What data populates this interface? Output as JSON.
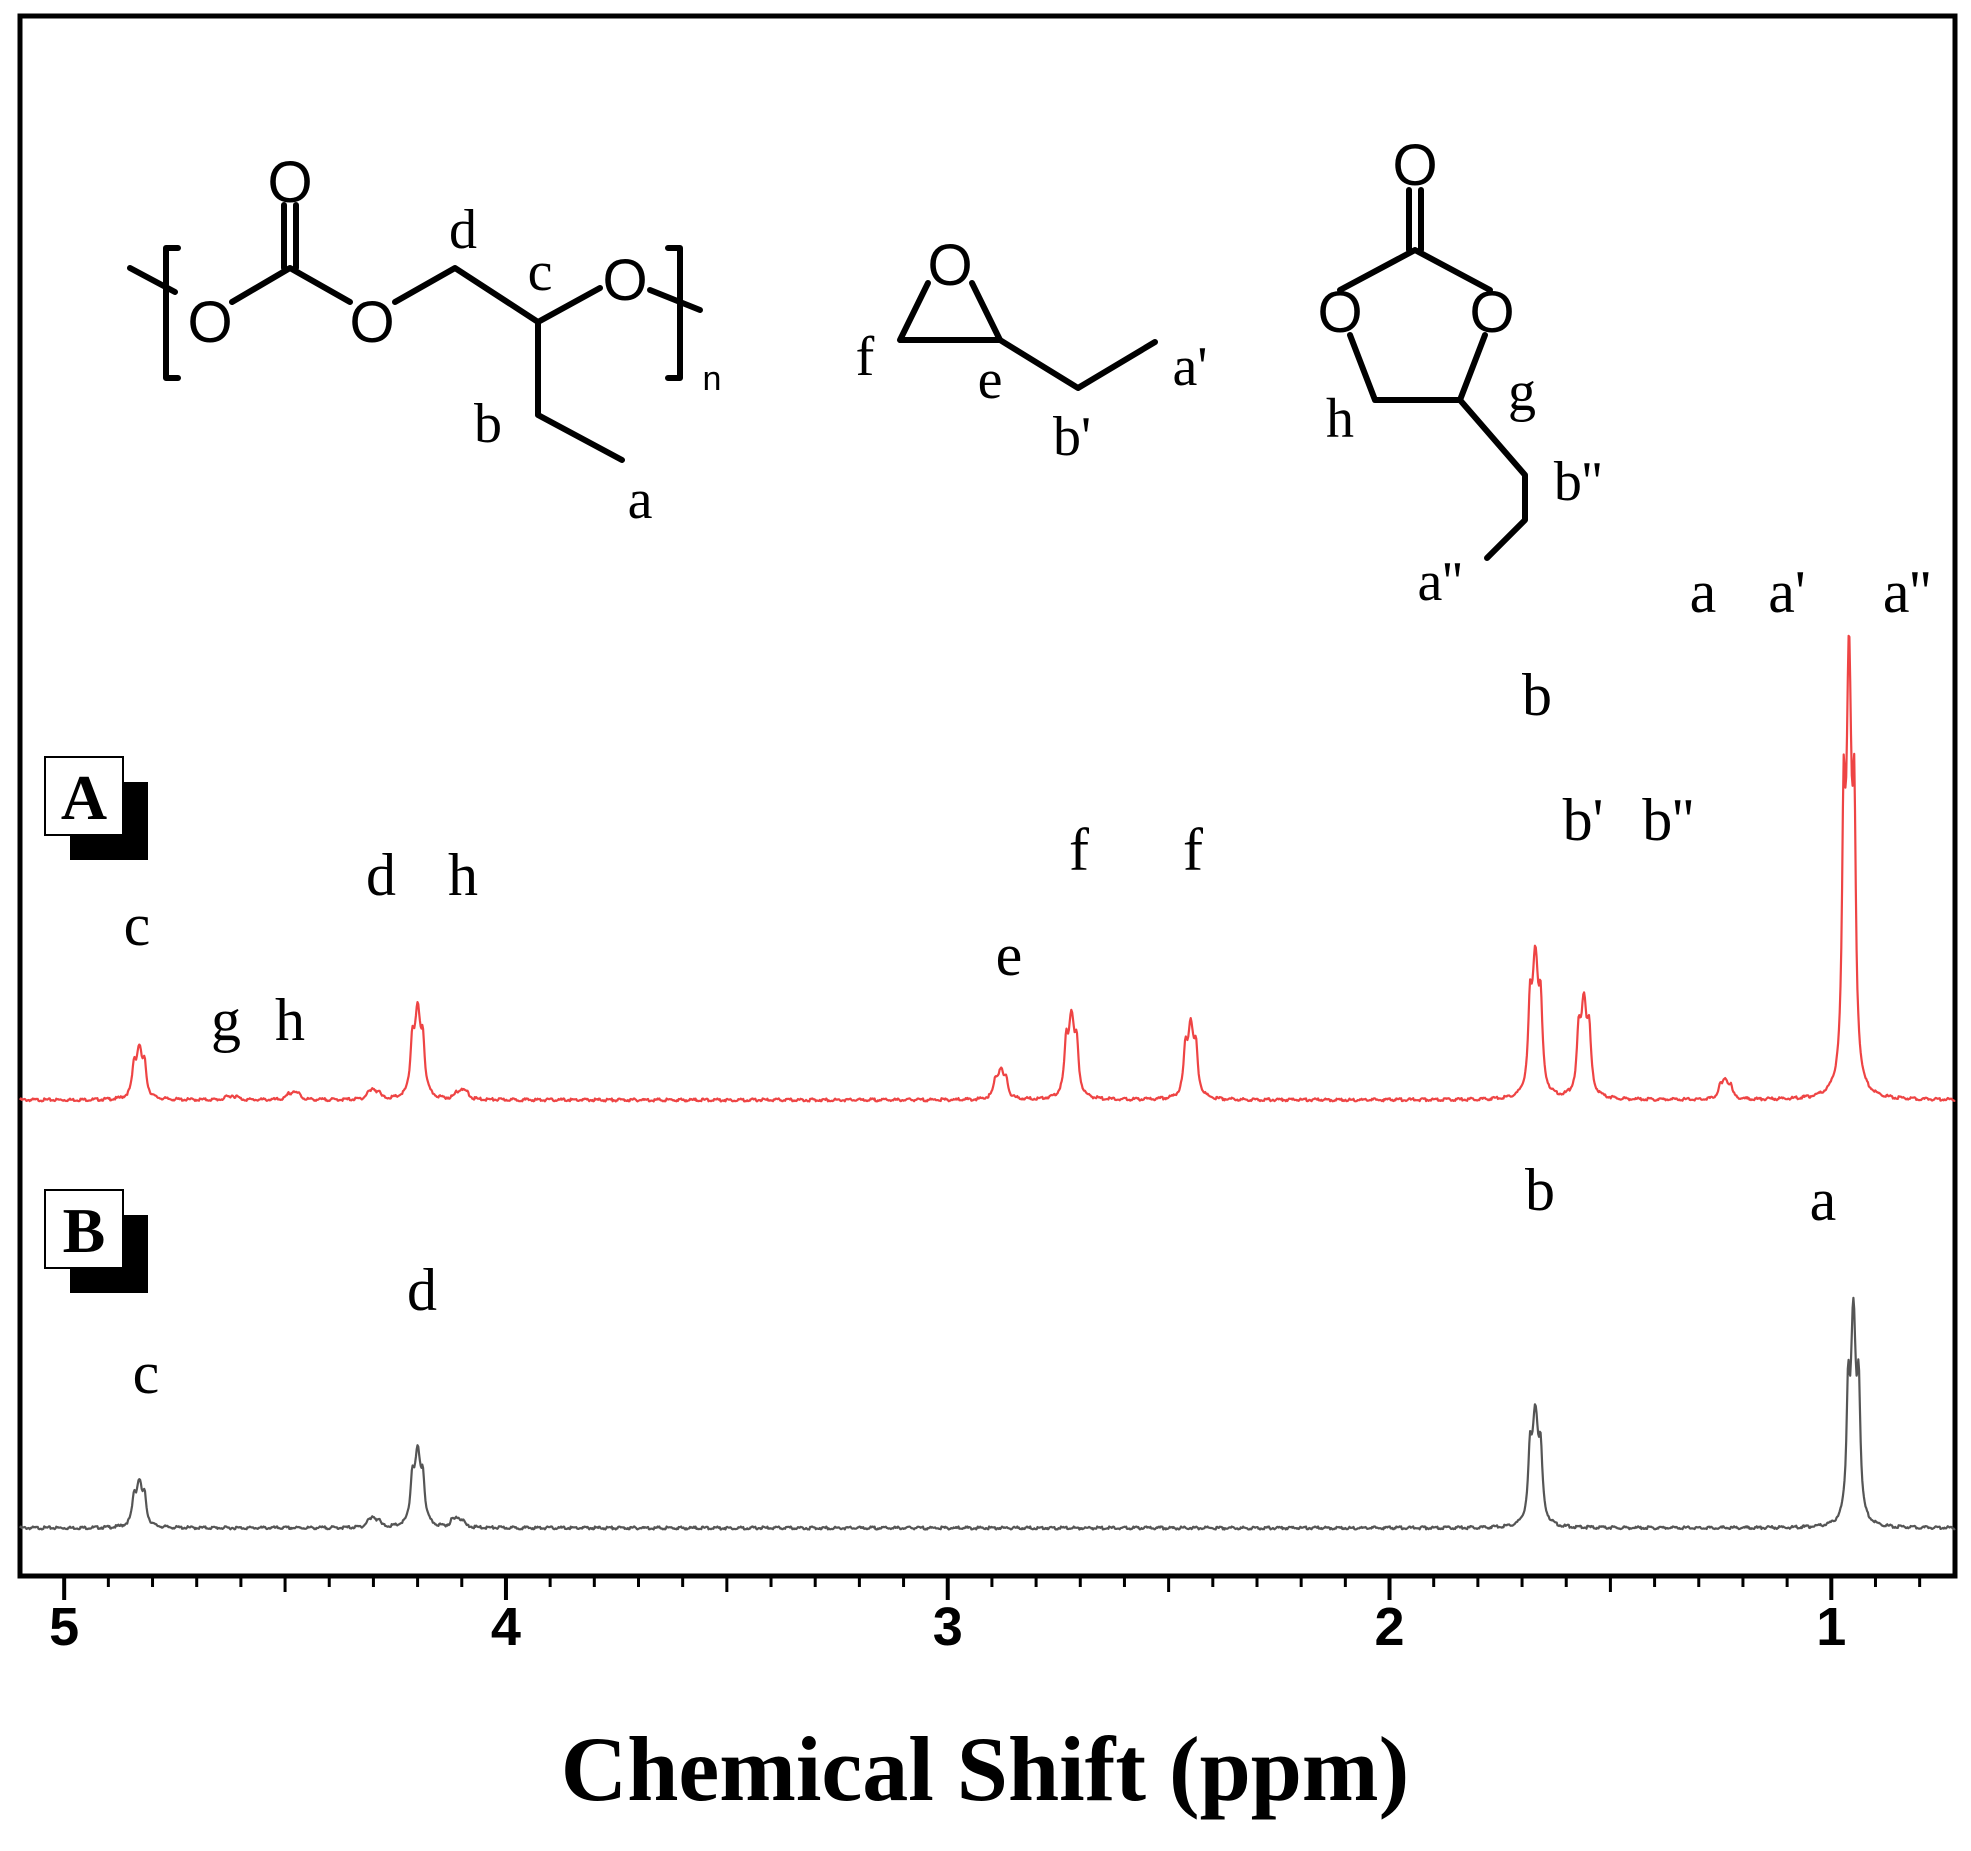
{
  "chart_data": {
    "type": "line",
    "xlabel": "Chemical Shift (ppm)",
    "ylabel": "",
    "xlim": [
      5.1,
      0.72
    ],
    "x_reversed": true,
    "x_ticks": [
      "5",
      "4",
      "3",
      "2",
      "1"
    ],
    "grid": false,
    "series": [
      {
        "name": "A",
        "color": "#ee4444",
        "peaks": [
          {
            "shift": 4.83,
            "label": "c",
            "height": 0.26
          },
          {
            "shift": 4.62,
            "label": "g",
            "height": 0.02
          },
          {
            "shift": 4.48,
            "label": "h",
            "height": 0.04
          },
          {
            "shift": 4.3,
            "label": "",
            "height": 0.05
          },
          {
            "shift": 4.2,
            "label": "d",
            "height": 0.45
          },
          {
            "shift": 4.1,
            "label": "h",
            "height": 0.05
          },
          {
            "shift": 2.88,
            "label": "e",
            "height": 0.15
          },
          {
            "shift": 2.72,
            "label": "f",
            "height": 0.42
          },
          {
            "shift": 2.45,
            "label": "f",
            "height": 0.38
          },
          {
            "shift": 1.67,
            "label": "b",
            "height": 0.72
          },
          {
            "shift": 1.56,
            "label": "b'",
            "height": 0.5
          },
          {
            "shift": 1.24,
            "label": "",
            "height": 0.1
          },
          {
            "shift": 0.96,
            "label": "a a' a''",
            "height": 2.25
          }
        ]
      },
      {
        "name": "B",
        "color": "#555555",
        "peaks": [
          {
            "shift": 4.83,
            "label": "c",
            "height": 0.23
          },
          {
            "shift": 4.3,
            "label": "",
            "height": 0.05
          },
          {
            "shift": 4.2,
            "label": "d",
            "height": 0.38
          },
          {
            "shift": 4.11,
            "label": "",
            "height": 0.05
          },
          {
            "shift": 1.67,
            "label": "b",
            "height": 0.58
          },
          {
            "shift": 0.95,
            "label": "a",
            "height": 1.1
          }
        ]
      }
    ],
    "panel_labels": [
      "A",
      "B"
    ],
    "peak_labels_A": [
      "c",
      "g",
      "h",
      "d",
      "h",
      "e",
      "f",
      "f",
      "b",
      "b'",
      "b''",
      "a",
      "a'",
      "a''"
    ],
    "peak_labels_B": [
      "c",
      "d",
      "b",
      "a"
    ]
  },
  "structures": {
    "polymer": {
      "atoms": [
        "O",
        "O",
        "O",
        "O"
      ],
      "labels": [
        "d",
        "c",
        "b",
        "a"
      ],
      "subscript": "n"
    },
    "epoxide": {
      "atoms": [
        "O"
      ],
      "labels": [
        "f",
        "e",
        "a'",
        "b'"
      ]
    },
    "carbonate": {
      "atoms": [
        "O",
        "O",
        "O"
      ],
      "labels": [
        "h",
        "g",
        "b''",
        "a''"
      ]
    }
  },
  "colors": {
    "spectrum_A": "#ee4444",
    "spectrum_B": "#555555",
    "axis": "#000000"
  }
}
